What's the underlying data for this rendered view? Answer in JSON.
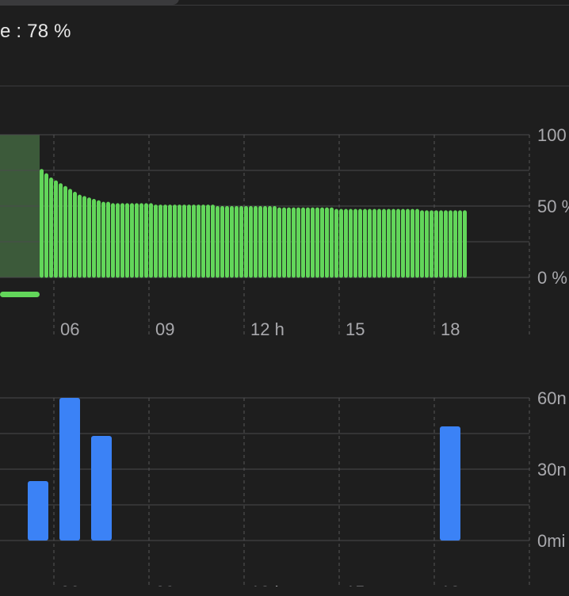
{
  "header": {
    "level_text": "e : 78 %"
  },
  "colors": {
    "battery_bar": "#62d65a",
    "charging_fill": "#3c5a3a",
    "charging_line": "#62d65a",
    "activity_bar": "#3b82f6",
    "gridline": "#4a4a4c",
    "dashed_line": "#555557"
  },
  "chart_data": [
    {
      "type": "bar",
      "title": "",
      "ylabel": "",
      "y_ticks": [
        "100",
        "50 %",
        "0 %"
      ],
      "x_ticks": [
        "06",
        "09",
        "12 h",
        "15",
        "18"
      ],
      "ylim": [
        0,
        100
      ],
      "charging_period": {
        "start_hour": 4.1,
        "end_hour": 5.3
      },
      "series": [
        {
          "start_hour": 5.33,
          "step_hours": 0.25,
          "values": [
            76,
            73,
            70,
            68,
            66,
            64,
            62,
            60,
            58,
            57,
            56,
            55,
            54,
            53,
            53,
            52,
            52,
            52,
            52,
            52,
            52,
            52,
            52,
            52,
            51,
            51,
            51,
            51,
            51,
            51,
            51,
            51,
            51,
            51,
            51,
            51,
            51,
            50,
            50,
            50,
            50,
            50,
            50,
            50,
            50,
            50,
            50,
            50,
            50,
            50,
            49,
            49,
            49,
            49,
            49,
            49,
            49,
            49,
            49,
            49,
            49,
            49,
            48,
            48,
            48,
            48,
            48,
            48,
            48,
            48,
            48,
            48,
            48,
            48,
            48,
            48,
            48,
            48,
            48,
            48,
            47,
            47,
            47,
            47,
            47,
            47,
            47,
            47,
            47,
            47,
            47,
            47,
            47,
            47,
            47,
            47,
            46,
            44,
            41,
            38
          ]
        }
      ]
    },
    {
      "type": "bar",
      "title": "",
      "ylabel": "",
      "y_ticks": [
        "60n",
        "30n",
        "0mi"
      ],
      "x_ticks": [
        "06",
        "09",
        "12 h",
        "15",
        "18"
      ],
      "ylim": [
        0,
        60
      ],
      "series": [
        {
          "x_hours": [
            5,
            6,
            7,
            18
          ],
          "values": [
            25,
            60,
            44,
            48
          ]
        }
      ]
    }
  ]
}
